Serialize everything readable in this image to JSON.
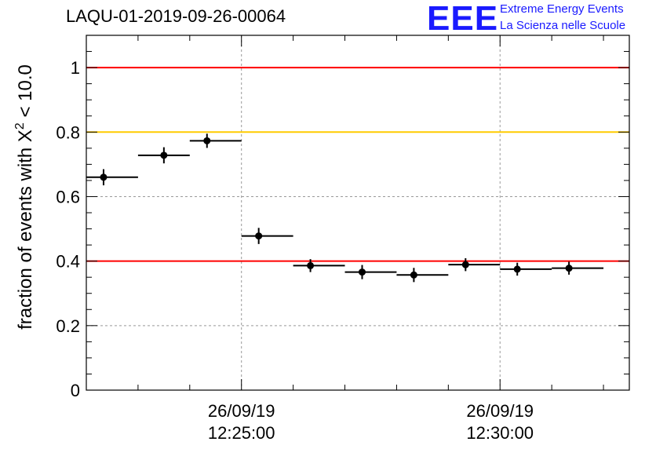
{
  "header": {
    "title": "LAQU-01-2019-09-26-00064",
    "logo_text": "EEE",
    "brand_line1": "Extreme Energy Events",
    "brand_line2": "La Scienza nelle Scuole"
  },
  "colors": {
    "brand": "#1a1aff",
    "red_line": "#ff0000",
    "orange_line": "#ffcc00",
    "points": "#000000",
    "grid": "#999999"
  },
  "chart_data": {
    "type": "scatter",
    "title": "LAQU-01-2019-09-26-00064",
    "ylabel_main": "fraction of events with X",
    "ylabel_sup": "2",
    "ylabel_tail": " < 10.0",
    "xlabel": "",
    "x_unit": "time",
    "xlim": [
      "12:22:00",
      "12:32:30"
    ],
    "ylim": [
      0,
      1.1
    ],
    "yticks": [
      0,
      0.2,
      0.4,
      0.6,
      0.8,
      1
    ],
    "ytick_labels": [
      "0",
      "0.2",
      "0.4",
      "0.6",
      "0.8",
      "1"
    ],
    "xtick_labels": [
      {
        "time": "12:25:00",
        "line1": "26/09/19",
        "line2": "12:25:00"
      },
      {
        "time": "12:30:00",
        "line1": "26/09/19",
        "line2": "12:30:00"
      }
    ],
    "grid": true,
    "reference_lines": [
      {
        "y": 1.0,
        "color": "#ff0000"
      },
      {
        "y": 0.8,
        "color": "#ffcc00"
      },
      {
        "y": 0.4,
        "color": "#ff0000"
      }
    ],
    "points": [
      {
        "x_start": "12:22:00",
        "x_end": "12:23:00",
        "x": "12:22:20",
        "y": 0.66,
        "err": 0.025
      },
      {
        "x_start": "12:23:00",
        "x_end": "12:24:00",
        "x": "12:23:30",
        "y": 0.728,
        "err": 0.025
      },
      {
        "x_start": "12:24:00",
        "x_end": "12:25:00",
        "x": "12:24:20",
        "y": 0.773,
        "err": 0.022
      },
      {
        "x_start": "12:25:00",
        "x_end": "12:26:00",
        "x": "12:25:20",
        "y": 0.478,
        "err": 0.025
      },
      {
        "x_start": "12:26:00",
        "x_end": "12:27:00",
        "x": "12:26:20",
        "y": 0.386,
        "err": 0.02
      },
      {
        "x_start": "12:27:00",
        "x_end": "12:28:00",
        "x": "12:27:20",
        "y": 0.366,
        "err": 0.022
      },
      {
        "x_start": "12:28:00",
        "x_end": "12:29:00",
        "x": "12:28:20",
        "y": 0.357,
        "err": 0.022
      },
      {
        "x_start": "12:29:00",
        "x_end": "12:30:00",
        "x": "12:29:20",
        "y": 0.389,
        "err": 0.02
      },
      {
        "x_start": "12:30:00",
        "x_end": "12:31:00",
        "x": "12:30:20",
        "y": 0.375,
        "err": 0.02
      },
      {
        "x_start": "12:31:00",
        "x_end": "12:32:00",
        "x": "12:31:20",
        "y": 0.378,
        "err": 0.02
      }
    ]
  }
}
